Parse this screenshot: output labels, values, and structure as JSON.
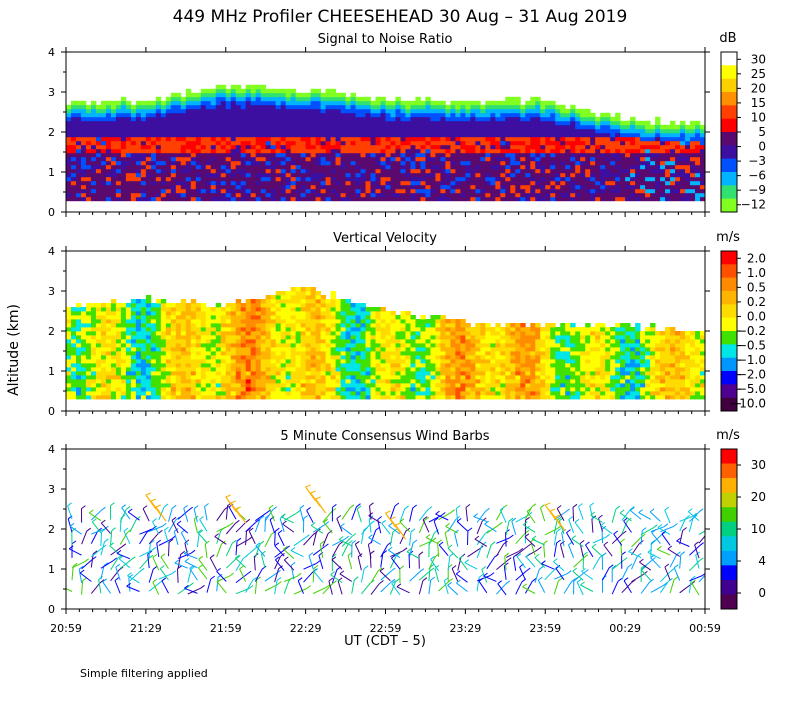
{
  "title": "449 MHz Profiler CHEESEHEAD 30 Aug – 31 Aug 2019",
  "ylabel": "Altitude (km)",
  "xlabel": "UT  (CDT – 5)",
  "footnote": "Simple filtering applied",
  "x_ticks": [
    "20:59",
    "21:29",
    "21:59",
    "22:29",
    "22:59",
    "23:29",
    "23:59",
    "00:29",
    "00:59"
  ],
  "y_ticks": [
    "0",
    "1",
    "2",
    "3",
    "4"
  ],
  "chart_data": [
    {
      "type": "heatmap",
      "title": "Signal to Noise Ratio",
      "unit": "dB",
      "x_range": [
        "20:59",
        "00:59"
      ],
      "ylim": [
        0,
        4
      ],
      "colorbar": {
        "labels": [
          "30",
          "25",
          "20",
          "15",
          "10",
          "5",
          "0",
          "−3",
          "−6",
          "−9",
          "−12"
        ],
        "colors": [
          "#ffffff",
          "#ffff00",
          "#ffd000",
          "#ff9000",
          "#ff4000",
          "#ff0000",
          "#5a0a6e",
          "#3c0fa0",
          "#0050ff",
          "#00b4ff",
          "#30e070",
          "#80ff20"
        ]
      },
      "data_bottom_km": 0.28,
      "top_edge_km": {
        "times": [
          "20:59",
          "21:29",
          "21:59",
          "22:29",
          "22:59",
          "23:29",
          "23:59",
          "00:29",
          "00:59"
        ],
        "values": [
          2.7,
          2.75,
          3.1,
          3.0,
          2.8,
          2.7,
          2.75,
          2.3,
          2.15
        ]
      },
      "red_band_top_km": 1.95,
      "red_band_bottom_km": 1.45
    },
    {
      "type": "heatmap",
      "title": "Vertical Velocity",
      "unit": "m/s",
      "x_range": [
        "20:59",
        "00:59"
      ],
      "ylim": [
        0,
        4
      ],
      "colorbar": {
        "labels": [
          "2.0",
          "1.0",
          "0.5",
          "0.2",
          "0.0",
          "−0.2",
          "−0.5",
          "−1.0",
          "−2.0",
          "−5.0",
          "−10.0"
        ],
        "colors": [
          "#ff0000",
          "#ff5000",
          "#ff8c00",
          "#ffb400",
          "#ffdc00",
          "#ffff00",
          "#40e000",
          "#00e6e6",
          "#0096ff",
          "#0000ff",
          "#500090",
          "#400040"
        ]
      },
      "data_bottom_km": 0.3,
      "top_edge_km": {
        "times": [
          "20:59",
          "21:29",
          "21:59",
          "22:29",
          "22:59",
          "23:29",
          "23:59",
          "00:29",
          "00:59"
        ],
        "values": [
          2.55,
          2.75,
          2.6,
          3.0,
          2.5,
          2.15,
          2.1,
          2.1,
          1.95
        ]
      }
    },
    {
      "type": "scatter",
      "subtype": "wind-barbs",
      "title": "5 Minute Consensus Wind Barbs",
      "unit": "m/s",
      "x_range": [
        "20:59",
        "00:59"
      ],
      "ylim": [
        0,
        4
      ],
      "colorbar": {
        "labels": [
          "30",
          "20",
          "10",
          "4",
          "0"
        ],
        "colors": [
          "#ff0000",
          "#ff6000",
          "#ffb000",
          "#c0d000",
          "#40d000",
          "#00d080",
          "#00c8e0",
          "#00a0ff",
          "#0000ff",
          "#400090",
          "#500050"
        ]
      },
      "altitude_range_km": [
        0.4,
        2.3
      ],
      "upper_barbs": [
        {
          "time": "21:29",
          "alt_km": 2.85,
          "speed_ms": 22
        },
        {
          "time": "21:59",
          "alt_km": 2.8,
          "speed_ms": 20
        },
        {
          "time": "22:29",
          "alt_km": 3.05,
          "speed_ms": 21
        },
        {
          "time": "22:59",
          "alt_km": 2.4,
          "speed_ms": 19
        },
        {
          "time": "23:59",
          "alt_km": 2.6,
          "speed_ms": 15
        }
      ]
    }
  ]
}
